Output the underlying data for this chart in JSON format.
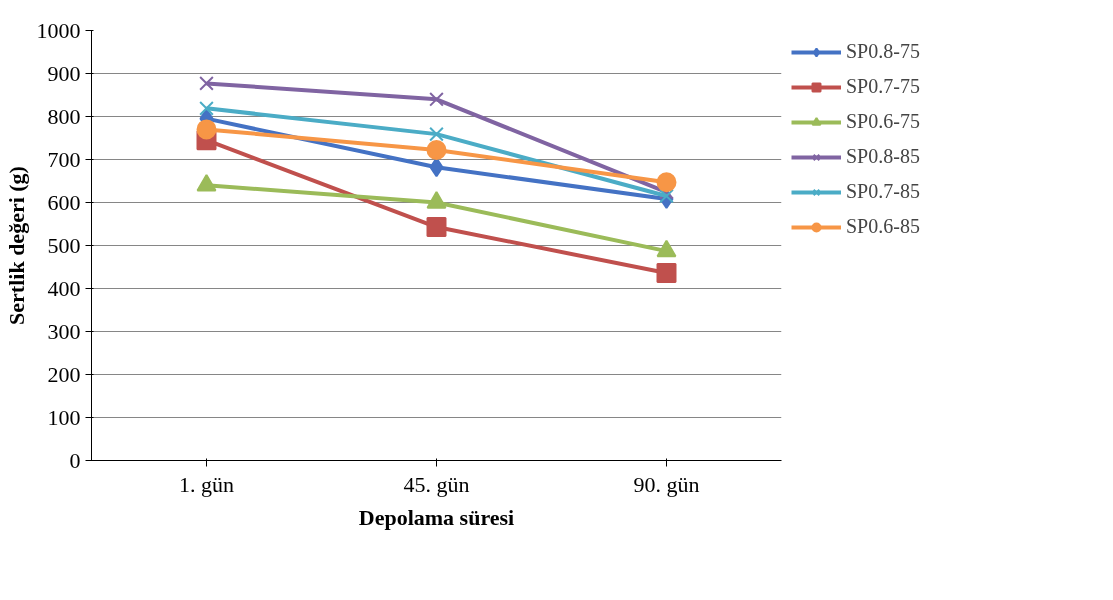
{
  "chart_data": {
    "type": "line",
    "xlabel": "Depolama süresi",
    "ylabel": "Sertlik değeri (g)",
    "categories": [
      "1. gün",
      "45. gün",
      "90. gün"
    ],
    "ylim": [
      0,
      1000
    ],
    "yticks": [
      0,
      100,
      200,
      300,
      400,
      500,
      600,
      700,
      800,
      900,
      1000
    ],
    "grid": "y",
    "legend": "right",
    "series": [
      {
        "name": "SP0.8-75",
        "color": "#4472c4",
        "marker": "diamond",
        "values": [
          795,
          682,
          608
        ]
      },
      {
        "name": "SP0.7-75",
        "color": "#c0504d",
        "marker": "square",
        "values": [
          745,
          543,
          436
        ]
      },
      {
        "name": "SP0.6-75",
        "color": "#9bbb59",
        "marker": "triangle",
        "values": [
          640,
          600,
          487
        ]
      },
      {
        "name": "SP0.8-85",
        "color": "#8064a2",
        "marker": "cross",
        "values": [
          877,
          840,
          624
        ]
      },
      {
        "name": "SP0.7-85",
        "color": "#4bacc6",
        "marker": "cross",
        "values": [
          819,
          759,
          615
        ]
      },
      {
        "name": "SP0.6-85",
        "color": "#f79646",
        "marker": "circle",
        "values": [
          770,
          722,
          647
        ]
      }
    ]
  }
}
